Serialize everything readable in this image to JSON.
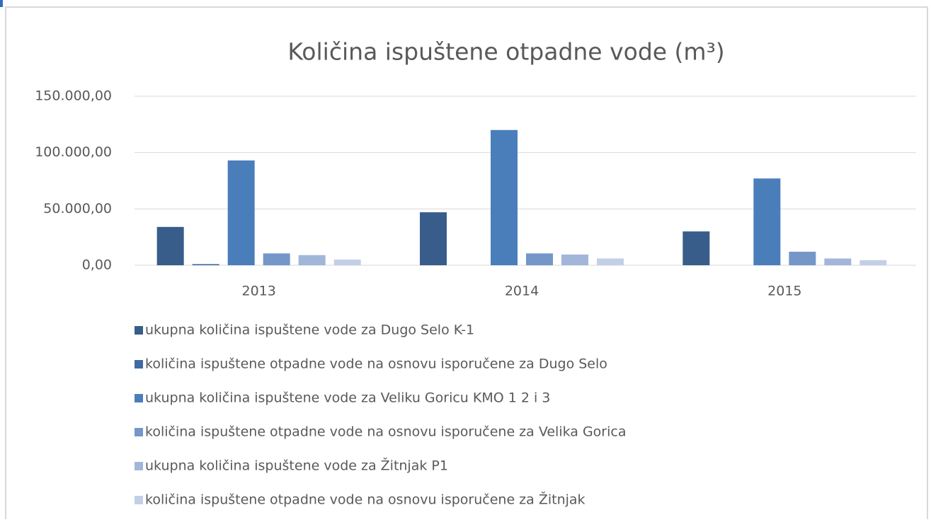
{
  "chart_data": {
    "type": "bar",
    "title": "Količina ispuštene otpadne vode (m³)",
    "categories": [
      "2013",
      "2014",
      "2015"
    ],
    "series": [
      {
        "name": "ukupna količina ispuštene vode za Dugo Selo K-1",
        "color": "#385d8a",
        "values": [
          34000,
          47000,
          30000
        ]
      },
      {
        "name": "količina ispuštene otpadne vode na osnovu isporučene za Dugo Selo",
        "color": "#3f6aa2",
        "values": [
          1000,
          0,
          0
        ]
      },
      {
        "name": "ukupna količina ispuštene vode za Veliku Goricu KMO 1 2 i 3",
        "color": "#4a7ebb",
        "values": [
          93000,
          120000,
          77000
        ]
      },
      {
        "name": "količina ispuštene otpadne vode na osnovu isporučene za Velika Gorica",
        "color": "#7596c9",
        "values": [
          10500,
          10500,
          12000
        ]
      },
      {
        "name": "ukupna količina ispuštene vode za Žitnjak P1",
        "color": "#a2b6da",
        "values": [
          9000,
          9500,
          6000
        ]
      },
      {
        "name": "količina ispuštene otpadne vode na osnovu isporučene za Žitnjak",
        "color": "#c3cfe7",
        "values": [
          5000,
          6000,
          4500
        ]
      }
    ],
    "ylim": [
      0,
      150000
    ],
    "yticks": [
      {
        "value": 0,
        "label": "0,00"
      },
      {
        "value": 50000,
        "label": "50.000,00"
      },
      {
        "value": 100000,
        "label": "100.000,00"
      },
      {
        "value": 150000,
        "label": "150.000,00"
      }
    ],
    "grid": true,
    "legend": "bottom"
  }
}
